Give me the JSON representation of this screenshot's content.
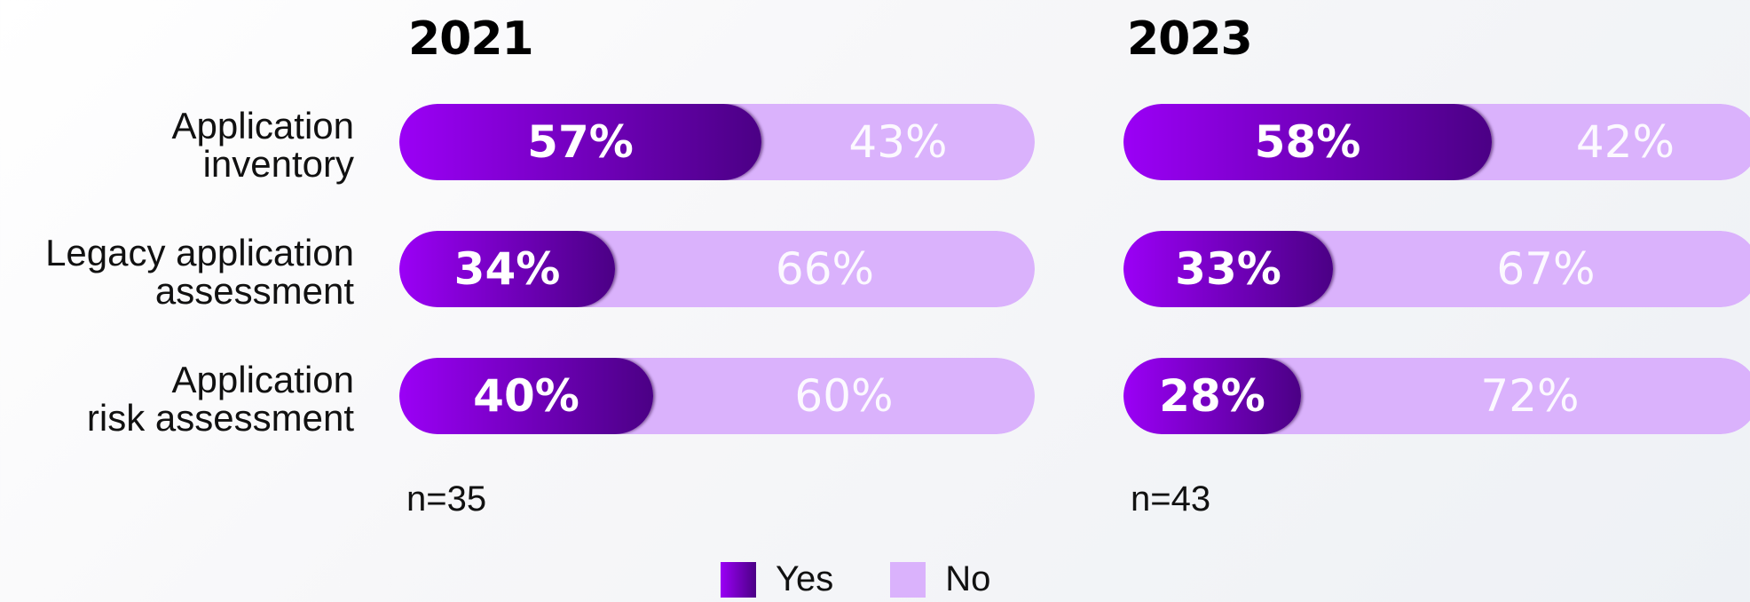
{
  "colors": {
    "yes_start": "#9b00f6",
    "yes_end": "#4b0085",
    "no": "#dab2fc",
    "text_dark": "#111111"
  },
  "chart_data": [
    {
      "type": "bar",
      "orientation": "horizontal",
      "stacked": true,
      "title": "2021",
      "categories": [
        "Application\ninventory",
        "Legacy application\nassessment",
        "Application\nrisk assessment"
      ],
      "series": [
        {
          "name": "Yes",
          "values": [
            57,
            34,
            40
          ],
          "labels": [
            "57%",
            "34%",
            "40%"
          ]
        },
        {
          "name": "No",
          "values": [
            43,
            66,
            60
          ],
          "labels": [
            "43%",
            "66%",
            "60%"
          ]
        }
      ],
      "note": "n=35",
      "ylim": [
        0,
        100
      ]
    },
    {
      "type": "bar",
      "orientation": "horizontal",
      "stacked": true,
      "title": "2023",
      "categories": [
        "Application\ninventory",
        "Legacy application\nassessment",
        "Application\nrisk assessment"
      ],
      "series": [
        {
          "name": "Yes",
          "values": [
            58,
            33,
            28
          ],
          "labels": [
            "58%",
            "33%",
            "28%"
          ]
        },
        {
          "name": "No",
          "values": [
            42,
            67,
            72
          ],
          "labels": [
            "42%",
            "67%",
            "72%"
          ]
        }
      ],
      "note": "n=43",
      "ylim": [
        0,
        100
      ]
    }
  ],
  "legend": [
    {
      "label": "Yes"
    },
    {
      "label": "No"
    }
  ]
}
